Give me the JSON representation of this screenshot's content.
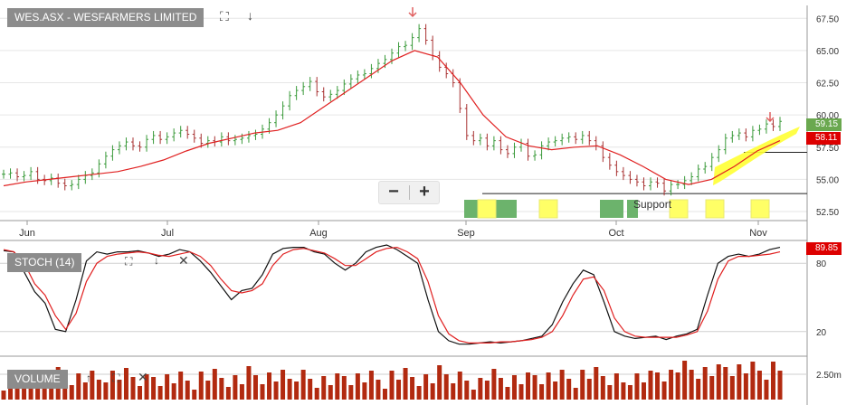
{
  "header": {
    "title": "WES.ASX - WESFARMERS LIMITED"
  },
  "panels": {
    "stoch_title": "STOCH (14)",
    "volume_title": "VOLUME"
  },
  "annotations": {
    "support_label": "Support"
  },
  "badges": {
    "last_price": "59.15",
    "ma_value": "58.11",
    "stoch_value": "89.85"
  },
  "toolbar": {
    "zoom_out_label": "−",
    "zoom_in_label": "+",
    "icons": [
      "expand-icon",
      "download-icon",
      "close-icon"
    ]
  },
  "colors": {
    "up": "#3a9a3a",
    "down": "#a83232",
    "ma": "#e02020",
    "volume": "#b22a10",
    "highlight": "#ffff33",
    "stoch_k": "#111111",
    "stoch_d": "#e02020",
    "last_price_bg": "#6aa84f",
    "ma_bg": "#dd0000"
  },
  "chart_data": [
    {
      "type": "candlestick",
      "title": "WES.ASX - WESFARMERS LIMITED",
      "x_ticks": [
        "Jun",
        "Jul",
        "Aug",
        "Sep",
        "Oct",
        "Nov"
      ],
      "y_ticks": [
        52.5,
        55.0,
        57.5,
        60.0,
        62.5,
        65.0,
        67.5
      ],
      "ylim": [
        51.8,
        68.5
      ],
      "series": [
        {
          "name": "Close",
          "values": [
            55.4,
            55.5,
            55.2,
            55.3,
            55.6,
            55.0,
            54.9,
            55.1,
            54.7,
            54.5,
            54.6,
            55.0,
            55.3,
            55.5,
            56.2,
            56.8,
            57.3,
            57.6,
            57.9,
            57.6,
            57.5,
            58.1,
            58.4,
            58.1,
            58.3,
            58.6,
            58.8,
            58.5,
            58.2,
            57.8,
            58.0,
            57.9,
            58.3,
            58.0,
            58.1,
            58.2,
            58.4,
            58.5,
            58.9,
            59.4,
            60.0,
            60.7,
            61.5,
            61.9,
            62.2,
            62.6,
            61.8,
            61.4,
            61.6,
            61.9,
            62.4,
            62.8,
            63.1,
            63.2,
            63.6,
            64.0,
            64.3,
            64.8,
            65.3,
            65.4,
            66.0,
            66.7,
            65.8,
            64.6,
            63.7,
            63.2,
            62.5,
            60.5,
            58.4,
            58.0,
            58.2,
            57.6,
            58.0,
            57.3,
            57.0,
            57.5,
            57.8,
            56.8,
            56.9,
            57.6,
            57.9,
            58.0,
            58.2,
            58.3,
            58.1,
            58.4,
            58.0,
            57.6,
            56.7,
            56.1,
            55.6,
            55.3,
            55.0,
            54.8,
            54.5,
            54.8,
            54.7,
            54.1,
            54.6,
            54.6,
            54.9,
            55.2,
            55.8,
            56.0,
            56.7,
            57.3,
            58.2,
            58.4,
            58.6,
            58.3,
            58.8,
            58.9,
            59.3,
            59.1,
            59.5
          ]
        },
        {
          "name": "Moving average",
          "values": [
            54.5,
            54.8,
            55.0,
            55.2,
            55.4,
            55.6,
            56.0,
            56.5,
            57.2,
            57.8,
            58.2,
            58.6,
            58.8,
            59.4,
            60.6,
            61.8,
            63.0,
            64.2,
            65.0,
            64.5,
            62.5,
            60.0,
            58.3,
            57.6,
            57.3,
            57.5,
            57.6,
            56.9,
            56.0,
            55.0,
            54.6,
            55.0,
            56.0,
            57.2,
            58.0
          ]
        }
      ]
    },
    {
      "type": "line",
      "title": "STOCH (14)",
      "y_ticks": [
        20,
        80
      ],
      "ylim": [
        0,
        100
      ],
      "series": [
        {
          "name": "%K",
          "values": [
            91,
            90,
            72,
            55,
            45,
            22,
            20,
            48,
            82,
            90,
            88,
            90,
            90,
            91,
            89,
            86,
            88,
            92,
            90,
            82,
            72,
            60,
            48,
            56,
            58,
            70,
            88,
            93,
            94,
            94,
            90,
            88,
            80,
            74,
            80,
            90,
            94,
            96,
            92,
            86,
            80,
            48,
            20,
            12,
            9,
            9,
            10,
            11,
            10,
            11,
            12,
            14,
            16,
            26,
            46,
            62,
            74,
            70,
            46,
            20,
            16,
            14,
            15,
            16,
            13,
            16,
            18,
            22,
            52,
            80,
            86,
            88,
            86,
            88,
            92,
            94
          ]
        },
        {
          "name": "%D",
          "values": [
            92,
            90,
            80,
            62,
            52,
            34,
            22,
            36,
            64,
            80,
            86,
            88,
            89,
            90,
            89,
            87,
            86,
            88,
            90,
            86,
            78,
            66,
            56,
            54,
            56,
            62,
            78,
            88,
            92,
            93,
            91,
            89,
            84,
            78,
            78,
            84,
            90,
            93,
            94,
            90,
            84,
            64,
            34,
            18,
            12,
            10,
            10,
            10,
            11,
            11,
            12,
            13,
            15,
            20,
            34,
            52,
            66,
            68,
            56,
            32,
            20,
            16,
            15,
            15,
            15,
            15,
            17,
            20,
            38,
            66,
            82,
            86,
            86,
            87,
            88,
            90
          ]
        }
      ]
    },
    {
      "type": "bar",
      "title": "VOLUME",
      "y_ticks": [
        "2.50m"
      ]
    }
  ]
}
